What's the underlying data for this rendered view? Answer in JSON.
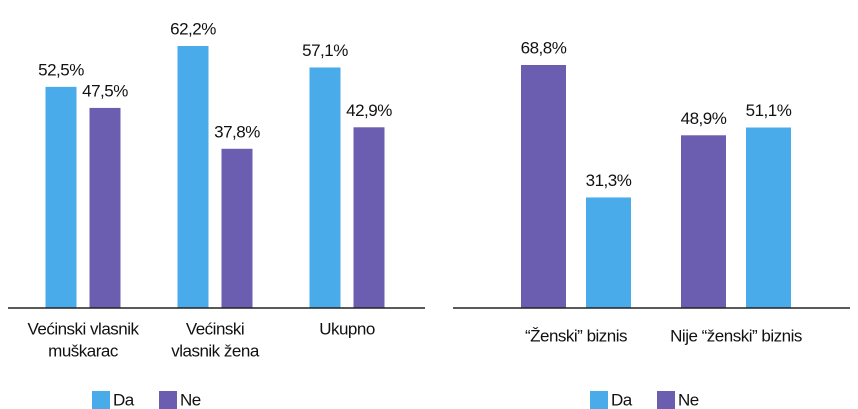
{
  "chart_data": [
    {
      "type": "bar",
      "categories": [
        [
          "Većinski vlasnik",
          "muškarac"
        ],
        [
          "Većinski",
          "vlasnik žena"
        ],
        [
          "Ukupno"
        ]
      ],
      "series": [
        {
          "name": "Da",
          "color": "#4aabea",
          "values": [
            52.5,
            62.2,
            57.1
          ],
          "value_labels": [
            "52,5%",
            "62,2%",
            "57,1%"
          ]
        },
        {
          "name": "Ne",
          "color": "#6b5eb0",
          "values": [
            47.5,
            37.8,
            42.9
          ],
          "value_labels": [
            "47,5%",
            "37,8%",
            "42,9%"
          ]
        }
      ]
    },
    {
      "type": "bar",
      "categories": [
        [
          "“Ženski” biznis"
        ],
        [
          "Nije “ženski” biznis"
        ]
      ],
      "series": [
        {
          "name": "Da",
          "color": "#4aabea",
          "values": [
            31.3,
            51.1
          ],
          "value_labels": [
            "31,3%",
            "51,1%"
          ]
        },
        {
          "name": "Ne",
          "color": "#6b5eb0",
          "values": [
            68.8,
            48.9
          ],
          "value_labels": [
            "68,8%",
            "48,9%"
          ]
        }
      ]
    }
  ]
}
